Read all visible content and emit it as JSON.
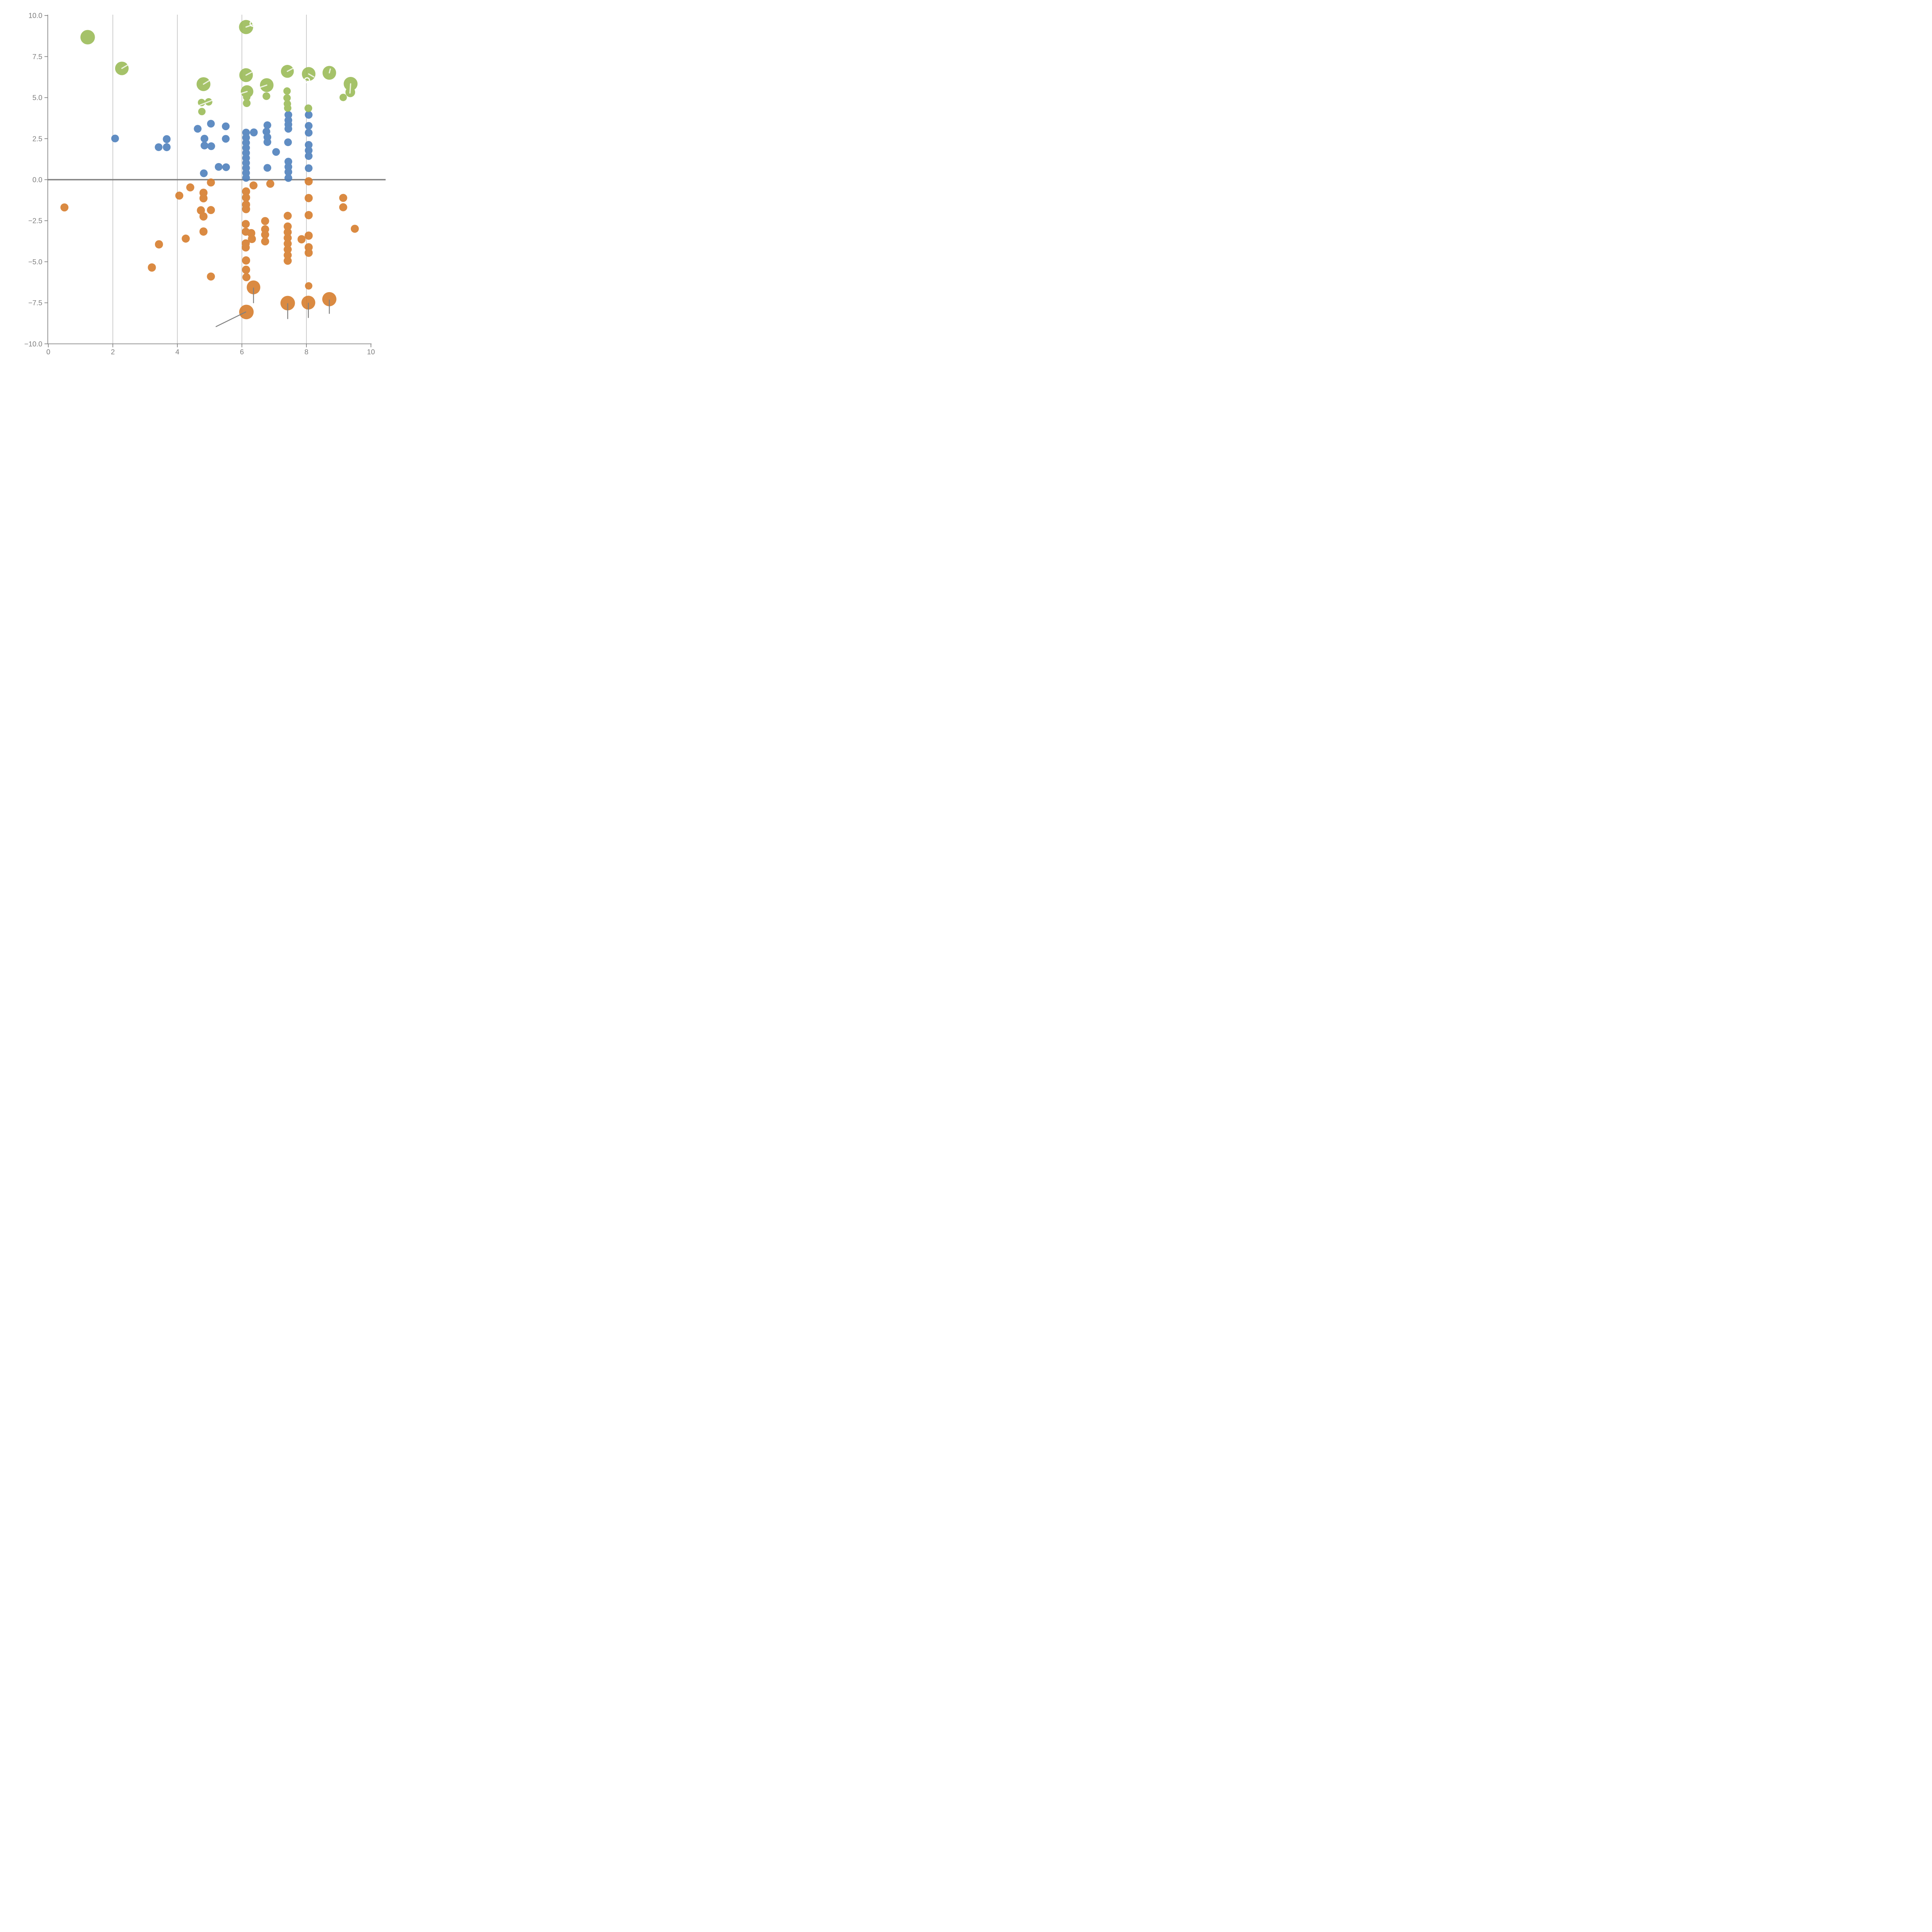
{
  "chart_data": {
    "type": "scatter",
    "title": "",
    "xlabel": "",
    "ylabel": "",
    "xlim": [
      0,
      10
    ],
    "ylim": [
      -10,
      10
    ],
    "grid_x": [
      2,
      4,
      6,
      8
    ],
    "zero_line_y": 0,
    "x_ticks": [
      0,
      2,
      4,
      6,
      8,
      10
    ],
    "x_tick_labels": [
      "0",
      "2",
      "4",
      "6",
      "8",
      "10"
    ],
    "y_ticks": [
      10,
      7.5,
      5,
      2.5,
      0,
      -2.5,
      -5,
      -7.5,
      -10
    ],
    "y_tick_labels": [
      "10.0",
      "7.5",
      "5.0",
      "2.5",
      "0.0",
      "−2.5",
      "−5.0",
      "−7.5",
      "−10.0"
    ],
    "legend": "none",
    "point_format": [
      "x",
      "y",
      "optional_radius_in_x_units"
    ],
    "series": [
      {
        "name": "blue",
        "color": "#4f81bd",
        "default_r": 0.12,
        "points": [
          [
            2.07,
            2.51
          ],
          [
            3.42,
            1.98
          ],
          [
            3.67,
            2.47
          ],
          [
            3.67,
            1.98
          ],
          [
            4.63,
            3.1
          ],
          [
            5.04,
            3.41
          ],
          [
            5.5,
            3.25
          ],
          [
            4.84,
            2.5
          ],
          [
            5.5,
            2.49
          ],
          [
            4.84,
            2.08
          ],
          [
            5.05,
            2.04
          ],
          [
            5.28,
            0.78
          ],
          [
            5.51,
            0.76
          ],
          [
            4.82,
            0.39
          ],
          [
            6.13,
            2.87
          ],
          [
            6.13,
            2.56
          ],
          [
            6.13,
            2.25
          ],
          [
            6.13,
            1.94
          ],
          [
            6.13,
            1.63
          ],
          [
            6.13,
            1.32
          ],
          [
            6.13,
            1.02
          ],
          [
            6.13,
            0.71
          ],
          [
            6.13,
            0.41
          ],
          [
            6.13,
            0.11
          ],
          [
            6.37,
            2.88
          ],
          [
            6.79,
            3.32
          ],
          [
            6.76,
            2.93
          ],
          [
            6.79,
            2.59
          ],
          [
            6.79,
            2.29
          ],
          [
            6.79,
            0.72
          ],
          [
            7.06,
            1.69
          ],
          [
            7.44,
            3.95
          ],
          [
            7.44,
            3.62
          ],
          [
            7.44,
            3.36
          ],
          [
            7.44,
            3.1
          ],
          [
            7.43,
            2.28
          ],
          [
            7.44,
            1.1
          ],
          [
            7.44,
            0.78
          ],
          [
            7.44,
            0.47
          ],
          [
            7.44,
            0.1
          ],
          [
            8.07,
            3.95
          ],
          [
            8.07,
            3.28
          ],
          [
            8.07,
            2.86
          ],
          [
            8.07,
            2.12
          ],
          [
            8.07,
            1.78
          ],
          [
            8.07,
            1.44
          ],
          [
            8.07,
            0.7
          ]
        ]
      },
      {
        "name": "orange",
        "color": "#d67d2e",
        "default_r": 0.125,
        "points": [
          [
            0.5,
            -1.69
          ],
          [
            3.21,
            -5.35
          ],
          [
            3.43,
            -3.94
          ],
          [
            4.06,
            -0.97
          ],
          [
            4.26,
            -3.59
          ],
          [
            4.4,
            -0.47
          ],
          [
            4.73,
            -1.87
          ],
          [
            4.81,
            -0.8
          ],
          [
            4.81,
            -1.13
          ],
          [
            4.81,
            -2.24
          ],
          [
            4.81,
            -3.16
          ],
          [
            5.04,
            -0.17
          ],
          [
            5.04,
            -1.85
          ],
          [
            5.04,
            -5.9
          ],
          [
            6.36,
            -0.35
          ],
          [
            6.88,
            -0.25
          ],
          [
            6.13,
            -0.72
          ],
          [
            6.13,
            -1.09
          ],
          [
            6.13,
            -1.52
          ],
          [
            6.13,
            -1.79
          ],
          [
            6.12,
            -2.7
          ],
          [
            6.12,
            -3.17
          ],
          [
            6.29,
            -3.26
          ],
          [
            6.31,
            -3.61
          ],
          [
            6.12,
            -3.88
          ],
          [
            6.12,
            -4.13
          ],
          [
            6.13,
            -4.92
          ],
          [
            6.13,
            -5.49
          ],
          [
            6.14,
            -5.94
          ],
          [
            6.72,
            -2.52
          ],
          [
            6.72,
            -3.02
          ],
          [
            6.72,
            -3.35
          ],
          [
            6.72,
            -3.76
          ],
          [
            7.42,
            -2.2
          ],
          [
            7.42,
            -2.85
          ],
          [
            7.42,
            -3.2
          ],
          [
            7.42,
            -3.55
          ],
          [
            7.42,
            -3.9
          ],
          [
            7.42,
            -4.25
          ],
          [
            7.42,
            -4.6
          ],
          [
            7.42,
            -4.94
          ],
          [
            7.85,
            -3.63
          ],
          [
            8.07,
            -0.1
          ],
          [
            8.07,
            -1.12
          ],
          [
            8.07,
            -2.16
          ],
          [
            8.07,
            -3.41
          ],
          [
            8.07,
            -4.12
          ],
          [
            8.07,
            -4.45
          ],
          [
            9.14,
            -1.11
          ],
          [
            9.14,
            -1.68
          ],
          [
            9.5,
            -2.99
          ],
          [
            6.36,
            -6.56,
            0.21
          ],
          [
            6.14,
            -8.06,
            0.225
          ],
          [
            7.42,
            -7.52,
            0.225
          ],
          [
            8.06,
            -7.49,
            0.215
          ],
          [
            8.71,
            -7.28,
            0.22
          ],
          [
            8.07,
            -6.47,
            0.115
          ]
        ]
      },
      {
        "name": "green",
        "color": "#9bbb59",
        "default_r": 0.115,
        "points": [
          [
            1.22,
            8.68,
            0.225
          ],
          [
            2.28,
            6.78,
            0.21
          ],
          [
            4.81,
            5.82,
            0.215
          ],
          [
            6.13,
            9.3,
            0.22
          ],
          [
            6.13,
            6.37,
            0.21
          ],
          [
            6.16,
            5.37,
            0.195
          ],
          [
            6.15,
            5.03,
            0.115
          ],
          [
            6.15,
            4.66,
            0.12
          ],
          [
            6.77,
            5.76,
            0.21
          ],
          [
            6.76,
            5.09,
            0.12
          ],
          [
            7.41,
            6.6,
            0.2
          ],
          [
            7.4,
            5.4
          ],
          [
            7.4,
            4.98
          ],
          [
            7.41,
            4.62
          ],
          [
            7.42,
            4.36
          ],
          [
            8.07,
            6.44,
            0.21
          ],
          [
            8.06,
            4.35,
            0.12
          ],
          [
            8.71,
            6.51,
            0.21
          ],
          [
            9.37,
            5.84,
            0.215
          ],
          [
            9.36,
            5.33,
            0.15
          ],
          [
            9.14,
            5.01
          ],
          [
            4.75,
            4.7
          ],
          [
            4.97,
            4.74
          ],
          [
            4.76,
            4.15
          ]
        ]
      }
    ],
    "white_tick_lines": [
      [
        2.28,
        6.78,
        2.46,
        6.99
      ],
      [
        4.81,
        5.82,
        5.0,
        6.05
      ],
      [
        6.13,
        9.3,
        6.33,
        9.44
      ],
      [
        6.13,
        6.37,
        6.3,
        6.55
      ],
      [
        6.16,
        5.37,
        5.92,
        5.22
      ],
      [
        6.77,
        5.76,
        6.56,
        5.62
      ],
      [
        7.41,
        6.6,
        7.58,
        6.78
      ],
      [
        8.07,
        6.44,
        8.23,
        6.26
      ],
      [
        8.71,
        6.51,
        8.74,
        6.74
      ],
      [
        9.37,
        5.84,
        9.35,
        5.28
      ],
      [
        4.66,
        4.51,
        5.15,
        4.89
      ]
    ],
    "white_circle_markers": [
      [
        6.34,
        9.51,
        0.085
      ],
      [
        8.02,
        6.06,
        0.075
      ]
    ],
    "gray_stem_lines": [
      [
        6.36,
        -6.6,
        6.36,
        -7.5
      ],
      [
        7.42,
        -7.55,
        7.42,
        -8.47
      ],
      [
        8.06,
        -7.52,
        8.06,
        -8.4
      ],
      [
        8.71,
        -7.33,
        8.71,
        -8.15
      ],
      [
        6.12,
        -8.06,
        5.2,
        -8.95
      ]
    ],
    "colors": {
      "axis": "#808080",
      "grid": "#737373",
      "zero_line": "#808080",
      "tick_label": "#7f7f7f",
      "stem": "#808080",
      "white_mark": "#ffffff"
    }
  }
}
